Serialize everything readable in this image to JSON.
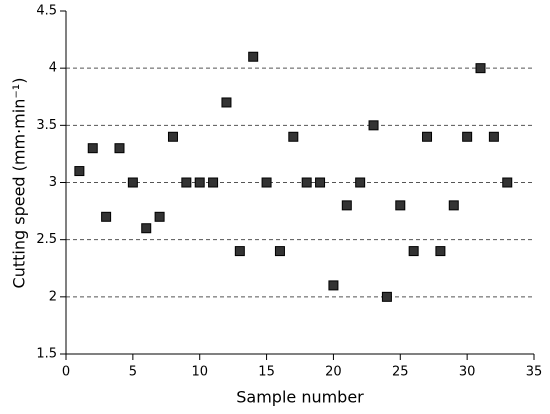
{
  "chart_data": {
    "type": "scatter",
    "x_label": "Sample number",
    "y_label": "Cutting speed (mm·min⁻¹)",
    "x": [
      1,
      2,
      3,
      4,
      5,
      6,
      7,
      8,
      9,
      10,
      11,
      12,
      13,
      14,
      15,
      16,
      17,
      18,
      19,
      20,
      21,
      22,
      23,
      24,
      25,
      26,
      27,
      28,
      29,
      30,
      31,
      32,
      33
    ],
    "values": [
      3.1,
      3.3,
      2.7,
      3.3,
      3.0,
      2.6,
      2.7,
      3.4,
      3.0,
      3.0,
      3.0,
      3.7,
      2.4,
      4.1,
      3.0,
      2.4,
      3.4,
      3.0,
      3.0,
      2.1,
      2.8,
      3.0,
      3.5,
      2.0,
      2.8,
      2.4,
      3.4,
      2.4,
      2.8,
      3.4,
      4.0,
      3.4,
      3.0
    ],
    "color": "#333333",
    "xlim": [
      0,
      35
    ],
    "xticks": [
      0,
      5,
      10,
      15,
      20,
      25,
      30,
      35
    ],
    "ylim": [
      1.5,
      4.5
    ],
    "yticks": [
      1.5,
      2,
      2.5,
      3,
      3.5,
      4,
      4.5
    ],
    "grid": true
  }
}
